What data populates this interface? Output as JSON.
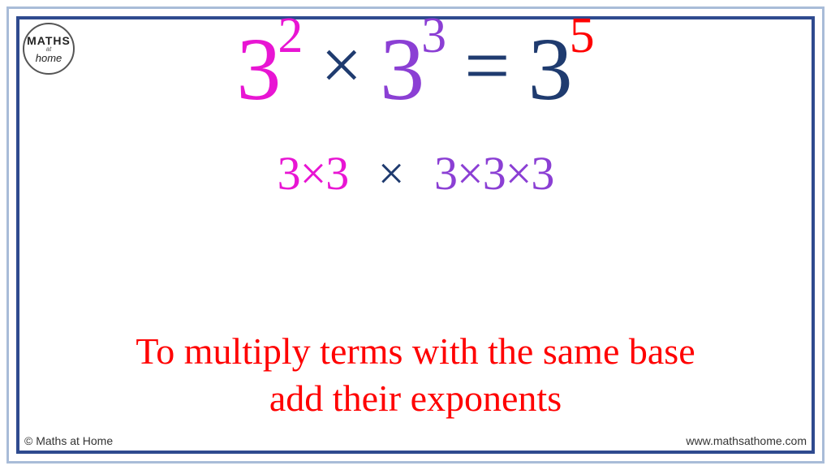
{
  "colors": {
    "magenta": "#e815d3",
    "purple": "#8b3fd4",
    "navy": "#1f3b6f",
    "red": "#ff0000",
    "border_outer": "#a9bcd8",
    "border_inner": "#2e4a8f",
    "text_gray": "#333333",
    "background": "#ffffff"
  },
  "logo": {
    "line1": "MATHS",
    "line2": "at",
    "line3": "home"
  },
  "equation": {
    "term1": {
      "base": "3",
      "exponent": "2",
      "base_color": "#e815d3",
      "exp_color": "#e815d3"
    },
    "op1": "×",
    "term2": {
      "base": "3",
      "exponent": "3",
      "base_color": "#8b3fd4",
      "exp_color": "#8b3fd4"
    },
    "eq": "=",
    "term3": {
      "base": "3",
      "exponent": "5",
      "base_color": "#1f3b6f",
      "exp_color": "#ff0000"
    },
    "op_color": "#1f3b6f",
    "base_fontsize": 110,
    "exp_fontsize": 62,
    "op_fontsize": 90
  },
  "expansion": {
    "group1": {
      "text": "3×3",
      "color": "#e815d3"
    },
    "middle_op": {
      "text": "×",
      "color": "#1f3b6f"
    },
    "group2": {
      "text": "3×3×3",
      "color": "#8b3fd4"
    },
    "fontsize": 58
  },
  "rule": {
    "line1": "To multiply terms with the same base",
    "line2": "add their exponents",
    "color": "#ff0000",
    "fontsize": 46
  },
  "footer": {
    "copyright": "© Maths at Home",
    "url": "www.mathsathome.com",
    "fontsize": 14
  }
}
